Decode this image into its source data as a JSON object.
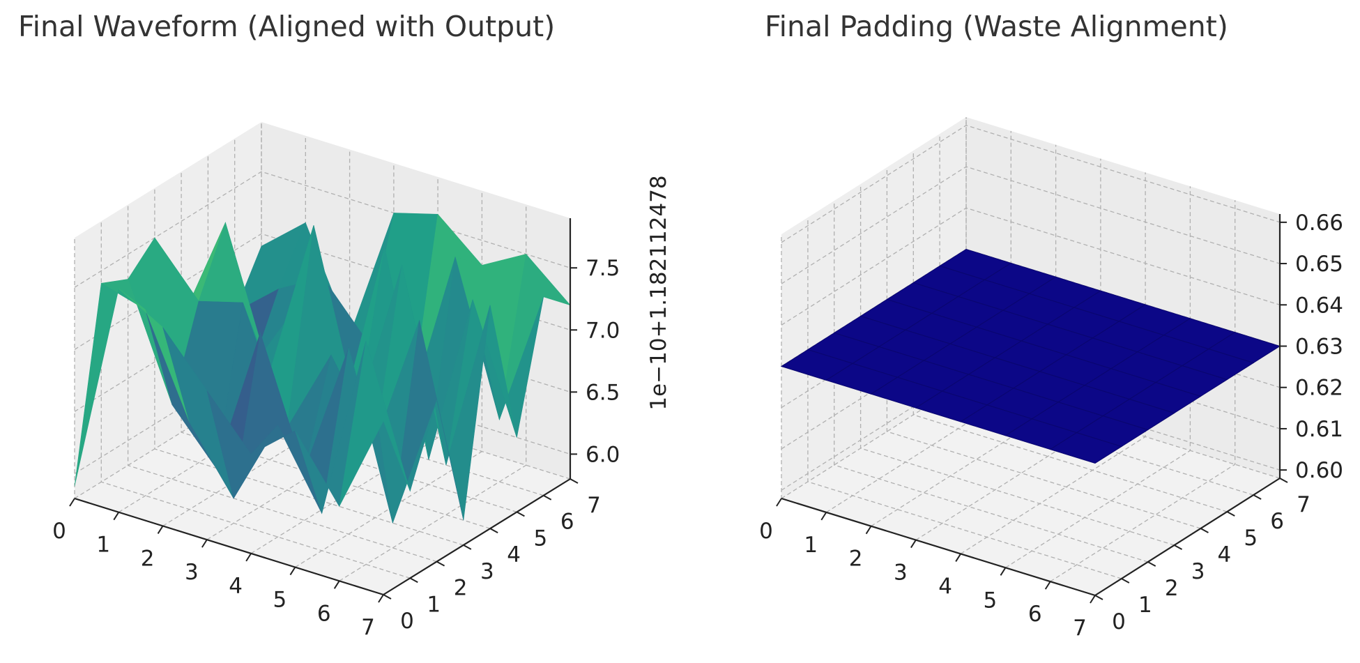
{
  "chart_data": [
    {
      "type": "surface3d",
      "title": "Final Waveform (Aligned with Output)",
      "xlabel": "",
      "ylabel": "",
      "zlabel": "",
      "colormap": "viridis",
      "x": [
        0,
        1,
        2,
        3,
        4,
        5,
        6,
        7
      ],
      "y": [
        0,
        1,
        2,
        3,
        4,
        5,
        6,
        7
      ],
      "xticks": [
        "0",
        "1",
        "2",
        "3",
        "4",
        "5",
        "6",
        "7"
      ],
      "yticks": [
        "0",
        "1",
        "2",
        "3",
        "4",
        "5",
        "6",
        "7"
      ],
      "zticks": [
        "6.0",
        "6.5",
        "7.0",
        "7.5"
      ],
      "z_offset_label": "1e−10+1.182112478",
      "zlim": [
        5.8,
        7.9
      ],
      "grid": true,
      "z": [
        [
          5.9,
          7.4,
          7.3,
          7.5,
          6.7,
          6.2,
          6.5,
          6.9
        ],
        [
          7.6,
          7.3,
          6.4,
          7.1,
          7.6,
          6.3,
          6.8,
          7.2
        ],
        [
          7.4,
          6.5,
          6.0,
          7.2,
          6.5,
          6.9,
          7.0,
          6.4
        ],
        [
          7.0,
          6.0,
          7.2,
          6.3,
          7.8,
          6.1,
          6.6,
          7.5
        ],
        [
          6.6,
          6.7,
          6.2,
          7.0,
          6.4,
          7.6,
          6.2,
          7.6
        ],
        [
          6.9,
          6.1,
          7.3,
          6.4,
          7.7,
          6.0,
          7.5,
          7.3
        ],
        [
          6.4,
          7.6,
          6.0,
          7.5,
          6.2,
          7.4,
          6.3,
          7.5
        ],
        [
          7.2,
          6.5,
          7.1,
          6.0,
          7.6,
          6.4,
          7.4,
          7.2
        ]
      ]
    },
    {
      "type": "surface3d",
      "title": "Final Padding (Waste Alignment)",
      "xlabel": "",
      "ylabel": "",
      "zlabel": "",
      "color": "#0c0787",
      "x": [
        0,
        1,
        2,
        3,
        4,
        5,
        6,
        7
      ],
      "y": [
        0,
        1,
        2,
        3,
        4,
        5,
        6,
        7
      ],
      "xticks": [
        "0",
        "1",
        "2",
        "3",
        "4",
        "5",
        "6",
        "7"
      ],
      "yticks": [
        "0",
        "1",
        "2",
        "3",
        "4",
        "5",
        "6",
        "7"
      ],
      "zticks": [
        "0.60",
        "0.61",
        "0.62",
        "0.63",
        "0.64",
        "0.65",
        "0.66"
      ],
      "zlim": [
        0.598,
        0.662
      ],
      "grid": true,
      "z_constant": 0.63
    }
  ]
}
